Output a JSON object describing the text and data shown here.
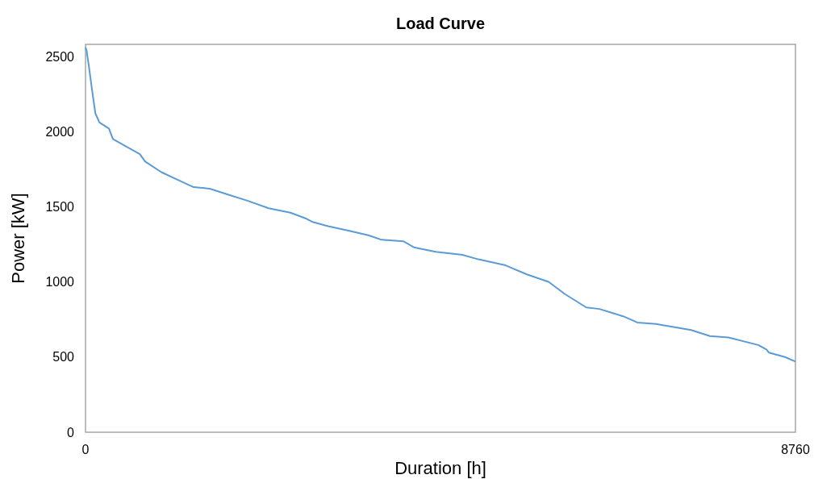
{
  "chart_data": {
    "type": "line",
    "title": "Load Curve",
    "xlabel": "Duration [h]",
    "ylabel": "Power [kW]",
    "x": [
      0,
      13,
      40,
      90,
      122,
      172,
      289,
      338,
      505,
      670,
      737,
      936,
      1135,
      1334,
      1533,
      1765,
      1998,
      2260,
      2529,
      2728,
      2794,
      2993,
      3255,
      3491,
      3653,
      3922,
      4052,
      4320,
      4649,
      4848,
      5184,
      5445,
      5714,
      5913,
      6179,
      6341,
      6640,
      6809,
      7038,
      7473,
      7704,
      7934,
      8302,
      8402,
      8432,
      8631,
      8760
    ],
    "series": [
      {
        "color": "#5b9bd5",
        "values": [
          2560,
          2540,
          2440,
          2240,
          2120,
          2060,
          2020,
          1950,
          1900,
          1850,
          1800,
          1730,
          1680,
          1630,
          1620,
          1580,
          1540,
          1490,
          1460,
          1420,
          1400,
          1370,
          1340,
          1310,
          1280,
          1270,
          1230,
          1200,
          1180,
          1150,
          1110,
          1050,
          1000,
          920,
          830,
          820,
          770,
          730,
          720,
          680,
          640,
          630,
          580,
          550,
          530,
          500,
          470
        ]
      }
    ],
    "xlim": [
      0,
      8760
    ],
    "xticks": [
      0,
      8760
    ],
    "ylim": [
      0,
      2580
    ],
    "yticks": [
      0,
      500,
      1000,
      1500,
      2000,
      2500
    ],
    "grid": false,
    "marker": "none",
    "line_style": "solid"
  }
}
